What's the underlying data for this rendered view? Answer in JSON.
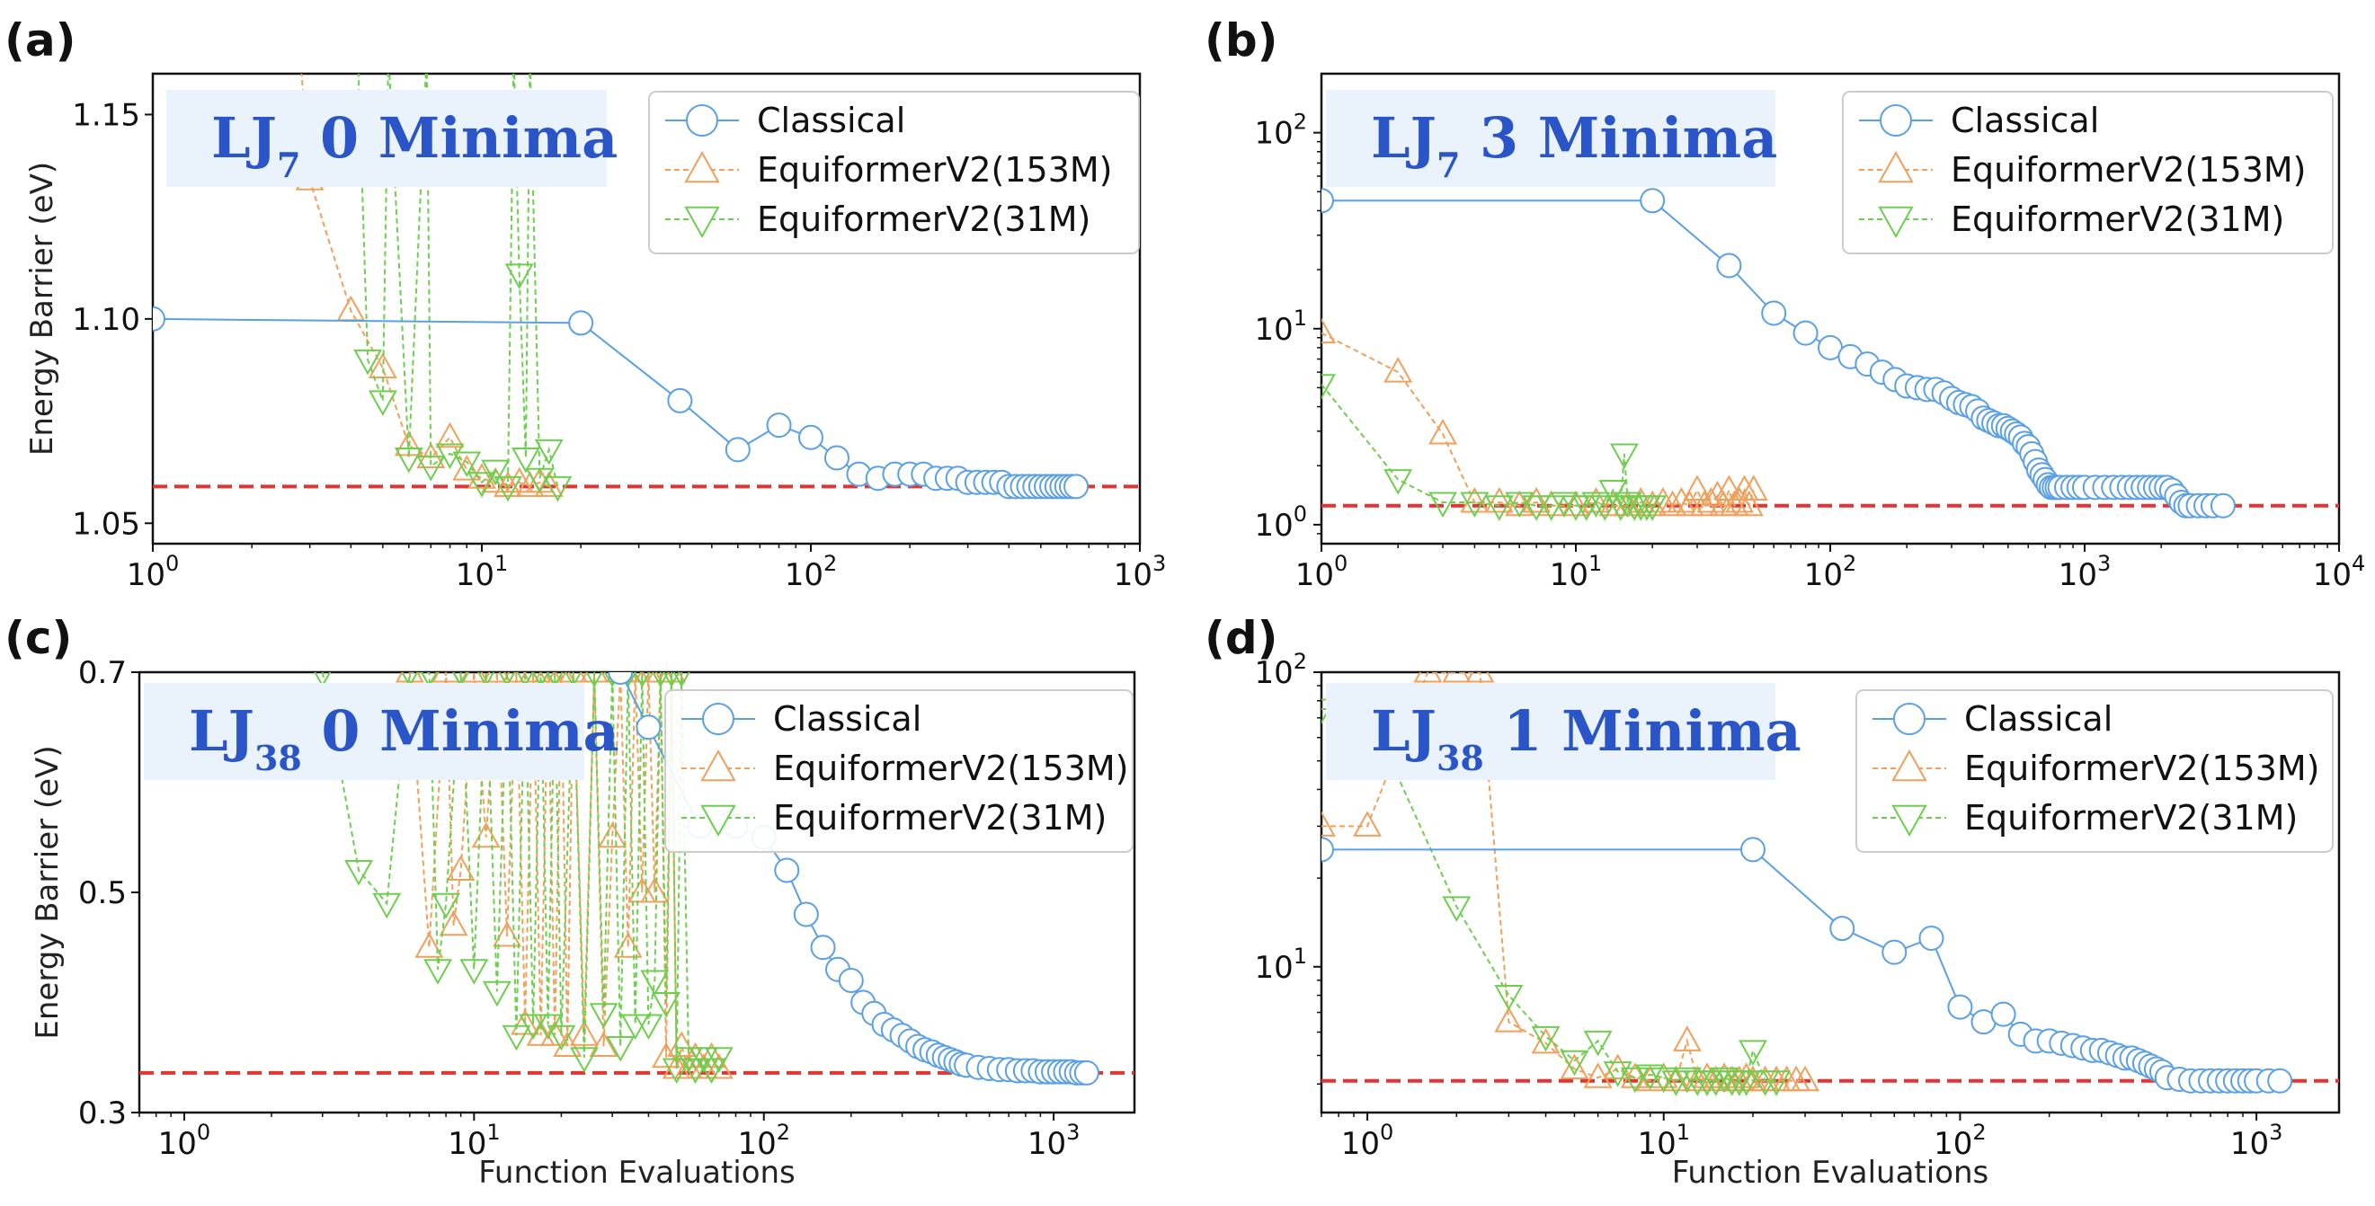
{
  "figure": {
    "x_axis_label": "Function Evaluations",
    "y_axis_label": "Energy Barrier (eV)"
  },
  "legend": {
    "classical": "Classical",
    "equiformer_153m": "EquiformerV2(153M)",
    "equiformer_31m": "EquiformerV2(31M)"
  },
  "colors": {
    "classical": "#5aa0e6",
    "equiformer_153m": "#f0a05a",
    "equiformer_31m": "#6ccf4e",
    "reference": "#e3342f",
    "title_box": "#eaf3fc",
    "title_text": "#2a55c9"
  },
  "chart_data": [
    {
      "id": "a",
      "type": "line",
      "panel_label": "(a)",
      "title_main": "LJ",
      "title_sub": "7",
      "title_rest": " 0 Minima",
      "xscale": "log",
      "yscale": "linear",
      "xlim": [
        1,
        1000
      ],
      "ylim": [
        1.045,
        1.16
      ],
      "xticks": [
        1,
        10,
        100,
        1000
      ],
      "xtick_labels": [
        [
          "10",
          "0"
        ],
        [
          "10",
          "1"
        ],
        [
          "10",
          "2"
        ],
        [
          "10",
          "3"
        ]
      ],
      "yticks": [
        1.05,
        1.1,
        1.15
      ],
      "ytick_labels": [
        "1.05",
        "1.10",
        "1.15"
      ],
      "show_ylabel": true,
      "show_xlabel": false,
      "reference": 1.059,
      "legend_position": "top-right",
      "series": [
        {
          "name": "Classical",
          "marker": "circle",
          "x": [
            1,
            20,
            40,
            60,
            80,
            100,
            120,
            140,
            160,
            180,
            200,
            220,
            240,
            260,
            280,
            300,
            320,
            340,
            360,
            380,
            400,
            420,
            440,
            460,
            480,
            500,
            520,
            540,
            560,
            580,
            600,
            620,
            640
          ],
          "y": [
            1.1,
            1.099,
            1.08,
            1.068,
            1.074,
            1.071,
            1.066,
            1.062,
            1.061,
            1.062,
            1.062,
            1.062,
            1.061,
            1.061,
            1.061,
            1.06,
            1.06,
            1.06,
            1.06,
            1.06,
            1.059,
            1.059,
            1.059,
            1.059,
            1.059,
            1.059,
            1.059,
            1.059,
            1.059,
            1.059,
            1.059,
            1.059,
            1.059
          ]
        },
        {
          "name": "EquiformerV2(153M)",
          "marker": "triangle-up",
          "x": [
            2.8,
            3,
            4,
            5,
            6,
            7,
            8,
            9,
            10,
            11,
            12,
            13,
            14,
            15,
            16
          ],
          "y": [
            1.165,
            1.134,
            1.102,
            1.088,
            1.069,
            1.066,
            1.071,
            1.063,
            1.061,
            1.06,
            1.059,
            1.06,
            1.059,
            1.06,
            1.059
          ]
        },
        {
          "name": "EquiformerV2(31M)",
          "marker": "triangle-down",
          "x": [
            4.2,
            4.5,
            5,
            5.2,
            6,
            6.8,
            7,
            8,
            9,
            10,
            11,
            12,
            12.5,
            13,
            13.6,
            14,
            15,
            16,
            17
          ],
          "y": [
            1.165,
            1.09,
            1.08,
            1.165,
            1.066,
            1.165,
            1.064,
            1.067,
            1.065,
            1.06,
            1.063,
            1.059,
            1.165,
            1.111,
            1.066,
            1.165,
            1.061,
            1.068,
            1.059
          ]
        }
      ]
    },
    {
      "id": "b",
      "type": "line",
      "panel_label": "(b)",
      "title_main": "LJ",
      "title_sub": "7",
      "title_rest": " 3 Minima",
      "xscale": "log",
      "yscale": "log",
      "xlim": [
        1,
        10000
      ],
      "ylim": [
        0.8,
        200
      ],
      "xticks": [
        1,
        10,
        100,
        1000,
        10000
      ],
      "xtick_labels": [
        [
          "10",
          "0"
        ],
        [
          "10",
          "1"
        ],
        [
          "10",
          "2"
        ],
        [
          "10",
          "3"
        ],
        [
          "10",
          "4"
        ]
      ],
      "yticks": [
        1,
        10,
        100
      ],
      "ytick_labels": [
        [
          "10",
          "0"
        ],
        [
          "10",
          "1"
        ],
        [
          "10",
          "2"
        ]
      ],
      "show_ylabel": false,
      "show_xlabel": false,
      "reference": 1.25,
      "legend_position": "top-right",
      "series": [
        {
          "name": "Classical",
          "marker": "circle",
          "x": [
            1,
            20,
            40,
            60,
            80,
            100,
            120,
            140,
            160,
            180,
            200,
            220,
            240,
            260,
            280,
            300,
            320,
            340,
            360,
            380,
            400,
            420,
            440,
            460,
            480,
            500,
            520,
            540,
            560,
            580,
            600,
            620,
            640,
            660,
            680,
            700,
            720,
            740,
            760,
            780,
            800,
            850,
            900,
            950,
            1000,
            1100,
            1200,
            1300,
            1400,
            1500,
            1600,
            1700,
            1800,
            1900,
            2000,
            2100,
            2200,
            2300,
            2400,
            2500,
            2600,
            2800,
            3000,
            3200,
            3500
          ],
          "y": [
            45,
            45,
            21,
            12,
            9.5,
            8,
            7.2,
            6.6,
            6.0,
            5.5,
            5.1,
            5.0,
            4.9,
            4.9,
            4.7,
            4.4,
            4.2,
            4.1,
            4.0,
            3.8,
            3.5,
            3.4,
            3.3,
            3.2,
            3.2,
            3.1,
            3.0,
            2.9,
            2.8,
            2.6,
            2.5,
            2.3,
            2.1,
            1.9,
            1.8,
            1.7,
            1.6,
            1.55,
            1.55,
            1.55,
            1.55,
            1.55,
            1.55,
            1.55,
            1.55,
            1.55,
            1.55,
            1.55,
            1.55,
            1.55,
            1.55,
            1.55,
            1.55,
            1.55,
            1.55,
            1.55,
            1.5,
            1.4,
            1.3,
            1.25,
            1.25,
            1.25,
            1.25,
            1.25,
            1.25
          ]
        },
        {
          "name": "EquiformerV2(153M)",
          "marker": "triangle-up",
          "x": [
            1,
            2,
            3,
            4,
            5,
            6,
            7,
            8,
            10,
            12,
            14,
            16,
            18,
            20,
            22,
            24,
            26,
            28,
            30,
            32,
            34,
            36,
            38,
            40,
            42,
            44,
            46,
            48,
            50
          ],
          "y": [
            9.5,
            6.0,
            2.9,
            1.3,
            1.3,
            1.25,
            1.3,
            1.25,
            1.25,
            1.3,
            1.25,
            1.25,
            1.3,
            1.25,
            1.3,
            1.25,
            1.3,
            1.25,
            1.5,
            1.25,
            1.3,
            1.4,
            1.25,
            1.5,
            1.25,
            1.3,
            1.5,
            1.25,
            1.5
          ]
        },
        {
          "name": "EquiformerV2(31M)",
          "marker": "triangle-down",
          "x": [
            1,
            2,
            3,
            4,
            5,
            6,
            7,
            8,
            9,
            10,
            11,
            12,
            13,
            14,
            15,
            15.5,
            16,
            17,
            18,
            19,
            20
          ],
          "y": [
            5.2,
            1.7,
            1.3,
            1.3,
            1.25,
            1.3,
            1.25,
            1.25,
            1.3,
            1.25,
            1.25,
            1.3,
            1.25,
            1.5,
            1.25,
            2.3,
            1.3,
            1.25,
            1.25,
            1.25,
            1.25
          ]
        }
      ]
    },
    {
      "id": "c",
      "type": "line",
      "panel_label": "(c)",
      "title_main": "LJ",
      "title_sub": "38",
      "title_rest": " 0 Minima",
      "xscale": "log",
      "yscale": "linear",
      "xlim": [
        0.7,
        1900
      ],
      "ylim": [
        0.3,
        0.7
      ],
      "xticks": [
        1,
        10,
        100,
        1000
      ],
      "xtick_labels": [
        [
          "10",
          "0"
        ],
        [
          "10",
          "1"
        ],
        [
          "10",
          "2"
        ],
        [
          "10",
          "3"
        ]
      ],
      "yticks": [
        0.3,
        0.5,
        0.7
      ],
      "ytick_labels": [
        "0.3",
        "0.5",
        "0.7"
      ],
      "show_ylabel": true,
      "show_xlabel": true,
      "reference": 0.336,
      "legend_position": "top-right",
      "series": [
        {
          "name": "Classical",
          "marker": "circle",
          "x": [
            32,
            40,
            60,
            80,
            100,
            120,
            140,
            160,
            180,
            200,
            220,
            240,
            260,
            280,
            300,
            320,
            340,
            360,
            380,
            400,
            420,
            440,
            460,
            480,
            500,
            550,
            600,
            650,
            700,
            750,
            800,
            850,
            900,
            950,
            1000,
            1050,
            1100,
            1150,
            1200,
            1250,
            1300
          ],
          "y": [
            0.7,
            0.65,
            0.56,
            0.56,
            0.55,
            0.52,
            0.48,
            0.45,
            0.43,
            0.42,
            0.4,
            0.39,
            0.38,
            0.375,
            0.37,
            0.365,
            0.36,
            0.357,
            0.355,
            0.352,
            0.35,
            0.348,
            0.346,
            0.344,
            0.343,
            0.341,
            0.34,
            0.339,
            0.339,
            0.338,
            0.338,
            0.338,
            0.337,
            0.337,
            0.337,
            0.337,
            0.337,
            0.337,
            0.336,
            0.336,
            0.336
          ]
        },
        {
          "name": "EquiformerV2(153M)",
          "marker": "triangle-up",
          "x": [
            6,
            7,
            8,
            8.5,
            9,
            10,
            11,
            12,
            13,
            14,
            15,
            16,
            17,
            18,
            19,
            20,
            21,
            22,
            24,
            26,
            28,
            30,
            32,
            34,
            36,
            38,
            40,
            42,
            44,
            46,
            48,
            50,
            52,
            55,
            58,
            62,
            66,
            70
          ],
          "y": [
            0.7,
            0.45,
            0.7,
            0.47,
            0.52,
            0.7,
            0.55,
            0.7,
            0.46,
            0.7,
            0.38,
            0.7,
            0.37,
            0.7,
            0.37,
            0.7,
            0.36,
            0.7,
            0.37,
            0.7,
            0.36,
            0.55,
            0.7,
            0.45,
            0.7,
            0.5,
            0.7,
            0.5,
            0.7,
            0.35,
            0.7,
            0.34,
            0.36,
            0.34,
            0.35,
            0.34,
            0.35,
            0.34
          ]
        },
        {
          "name": "EquiformerV2(31M)",
          "marker": "triangle-down",
          "x": [
            3,
            4,
            5,
            6,
            7,
            7.5,
            8,
            9,
            10,
            11,
            12,
            13,
            14,
            15,
            16,
            17,
            18,
            19,
            20,
            22,
            24,
            26,
            28,
            30,
            32,
            34,
            36,
            38,
            40,
            42,
            44,
            46,
            48,
            50,
            52,
            55,
            58,
            62,
            66,
            70
          ],
          "y": [
            0.7,
            0.52,
            0.49,
            0.7,
            0.7,
            0.43,
            0.49,
            0.7,
            0.43,
            0.7,
            0.41,
            0.7,
            0.37,
            0.7,
            0.38,
            0.7,
            0.38,
            0.7,
            0.37,
            0.7,
            0.35,
            0.7,
            0.39,
            0.7,
            0.36,
            0.7,
            0.38,
            0.7,
            0.38,
            0.42,
            0.7,
            0.4,
            0.7,
            0.34,
            0.7,
            0.35,
            0.34,
            0.35,
            0.34,
            0.35
          ]
        }
      ]
    },
    {
      "id": "d",
      "type": "line",
      "panel_label": "(d)",
      "title_main": "LJ",
      "title_sub": "38",
      "title_rest": " 1 Minima",
      "xscale": "log",
      "yscale": "log",
      "xlim": [
        0.7,
        1900
      ],
      "ylim": [
        3.2,
        100
      ],
      "xticks": [
        1,
        10,
        100,
        1000
      ],
      "xtick_labels": [
        [
          "10",
          "0"
        ],
        [
          "10",
          "1"
        ],
        [
          "10",
          "2"
        ],
        [
          "10",
          "3"
        ]
      ],
      "yticks": [
        10,
        100
      ],
      "ytick_labels": [
        [
          "10",
          "1"
        ],
        [
          "10",
          "2"
        ]
      ],
      "show_ylabel": false,
      "show_xlabel": true,
      "reference": 4.1,
      "legend_position": "top-right",
      "series": [
        {
          "name": "Classical",
          "marker": "circle",
          "x": [
            0.7,
            20,
            40,
            60,
            80,
            100,
            120,
            140,
            160,
            180,
            200,
            220,
            240,
            260,
            280,
            300,
            320,
            340,
            360,
            380,
            400,
            420,
            440,
            460,
            480,
            500,
            550,
            600,
            650,
            700,
            750,
            800,
            850,
            900,
            950,
            1000,
            1100,
            1200
          ],
          "y": [
            25,
            25,
            13.5,
            11.2,
            12.5,
            7.3,
            6.5,
            6.9,
            5.9,
            5.6,
            5.6,
            5.5,
            5.4,
            5.3,
            5.2,
            5.2,
            5.1,
            5.0,
            4.9,
            4.9,
            4.8,
            4.7,
            4.6,
            4.5,
            4.4,
            4.2,
            4.15,
            4.1,
            4.1,
            4.1,
            4.1,
            4.1,
            4.1,
            4.1,
            4.1,
            4.1,
            4.1,
            4.1
          ]
        },
        {
          "name": "EquiformerV2(153M)",
          "marker": "triangle-up",
          "x": [
            0.7,
            1,
            1.6,
            2,
            2.4,
            3,
            4,
            5,
            6,
            7,
            8,
            9,
            10,
            11,
            12,
            13,
            14,
            15,
            16,
            17,
            18,
            19,
            20,
            22,
            24,
            26,
            28,
            30
          ],
          "y": [
            30,
            30,
            100,
            100,
            100,
            6.5,
            5.5,
            4.5,
            4.2,
            4.5,
            4.2,
            4.1,
            4.2,
            4.1,
            5.6,
            4.1,
            4.2,
            4.1,
            4.2,
            4.1,
            4.1,
            4.2,
            4.1,
            4.1,
            4.1,
            4.1,
            4.1,
            4.1
          ]
        },
        {
          "name": "EquiformerV2(31M)",
          "marker": "triangle-down",
          "x": [
            0.7,
            1,
            2,
            3,
            4,
            5,
            6,
            7,
            8,
            9,
            10,
            11,
            12,
            13,
            14,
            15,
            16,
            17,
            18,
            19,
            20,
            22,
            24
          ],
          "y": [
            75,
            75,
            16,
            8.0,
            5.8,
            4.8,
            5.6,
            4.4,
            4.2,
            4.3,
            4.2,
            4.1,
            4.2,
            4.1,
            4.1,
            4.1,
            4.2,
            4.1,
            4.1,
            4.1,
            5.2,
            4.1,
            4.1
          ]
        }
      ]
    }
  ]
}
